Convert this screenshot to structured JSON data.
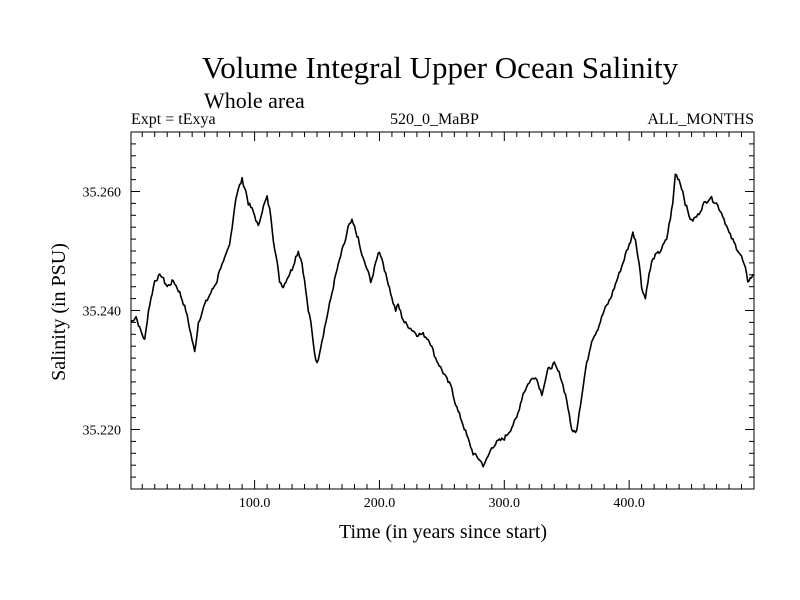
{
  "title": "Volume Integral Upper Ocean Salinity",
  "subtitle": "Whole area",
  "meta": {
    "left": "Expt = tExya",
    "center": "520_0_MaBP",
    "right": "ALL_MONTHS"
  },
  "chart_data": {
    "type": "line",
    "title": "Volume Integral Upper Ocean Salinity",
    "subtitle": "Whole area",
    "xlabel": "Time (in years since start)",
    "ylabel": "Salinity (in PSU)",
    "xlim": [
      1,
      500
    ],
    "ylim": [
      35.21,
      35.27
    ],
    "xticks": [
      100.0,
      200.0,
      300.0,
      400.0
    ],
    "xtick_labels": [
      "100.0",
      "200.0",
      "300.0",
      "400.0"
    ],
    "yticks": [
      35.22,
      35.24,
      35.26
    ],
    "ytick_labels": [
      "35.220",
      "35.240",
      "35.260"
    ],
    "grid": false,
    "series": [
      {
        "color": "#000000",
        "x": [
          1,
          5,
          8,
          12,
          15,
          20,
          25,
          30,
          35,
          40,
          45,
          50,
          52,
          55,
          60,
          65,
          70,
          72,
          75,
          80,
          85,
          88,
          90,
          93,
          95,
          98,
          100,
          103,
          105,
          108,
          110,
          113,
          115,
          118,
          120,
          123,
          125,
          130,
          133,
          135,
          138,
          140,
          143,
          145,
          148,
          150,
          155,
          160,
          163,
          165,
          170,
          173,
          175,
          178,
          180,
          183,
          185,
          188,
          190,
          193,
          195,
          198,
          200,
          203,
          205,
          208,
          210,
          213,
          215,
          218,
          220,
          225,
          230,
          235,
          240,
          245,
          250,
          255,
          258,
          260,
          263,
          265,
          270,
          275,
          280,
          283,
          285,
          288,
          290,
          295,
          300,
          305,
          310,
          315,
          320,
          325,
          330,
          335,
          340,
          345,
          350,
          353,
          355,
          358,
          360,
          363,
          365,
          368,
          370,
          375,
          380,
          385,
          390,
          395,
          398,
          400,
          403,
          405,
          408,
          410,
          413,
          415,
          418,
          420,
          425,
          430,
          435,
          437,
          440,
          443,
          445,
          448,
          450,
          455,
          460,
          465,
          470,
          475,
          480,
          485,
          490,
          493,
          495,
          500
        ],
        "y": [
          35.238,
          35.239,
          35.237,
          35.235,
          35.24,
          35.245,
          35.246,
          35.244,
          35.245,
          35.243,
          35.24,
          35.235,
          35.233,
          35.238,
          35.241,
          35.243,
          35.245,
          35.247,
          35.248,
          35.251,
          35.259,
          35.261,
          35.262,
          35.26,
          35.258,
          35.257,
          35.256,
          35.254,
          35.256,
          35.258,
          35.259,
          35.256,
          35.252,
          35.248,
          35.245,
          35.244,
          35.245,
          35.247,
          35.249,
          35.25,
          35.248,
          35.245,
          35.24,
          35.238,
          35.233,
          35.231,
          35.236,
          35.241,
          35.244,
          35.246,
          35.25,
          35.252,
          35.254,
          35.255,
          35.254,
          35.252,
          35.25,
          35.248,
          35.247,
          35.245,
          35.246,
          35.249,
          35.25,
          35.248,
          35.246,
          35.244,
          35.242,
          35.24,
          35.241,
          35.239,
          35.238,
          35.237,
          35.236,
          35.236,
          35.235,
          35.232,
          35.23,
          35.228,
          35.227,
          35.225,
          35.223,
          35.222,
          35.219,
          35.216,
          35.215,
          35.214,
          35.2145,
          35.216,
          35.217,
          35.218,
          35.2185,
          35.22,
          35.222,
          35.226,
          35.228,
          35.229,
          35.226,
          35.23,
          35.231,
          35.229,
          35.225,
          35.221,
          35.2195,
          35.22,
          35.223,
          35.227,
          35.23,
          35.233,
          35.235,
          35.237,
          35.24,
          35.242,
          35.245,
          35.248,
          35.25,
          35.251,
          35.253,
          35.252,
          35.248,
          35.244,
          35.242,
          35.245,
          35.248,
          35.249,
          35.25,
          35.252,
          35.258,
          35.263,
          35.262,
          35.26,
          35.258,
          35.256,
          35.255,
          35.256,
          35.258,
          35.259,
          35.258,
          35.256,
          35.253,
          35.251,
          35.249,
          35.247,
          35.245,
          35.246
        ]
      }
    ]
  }
}
